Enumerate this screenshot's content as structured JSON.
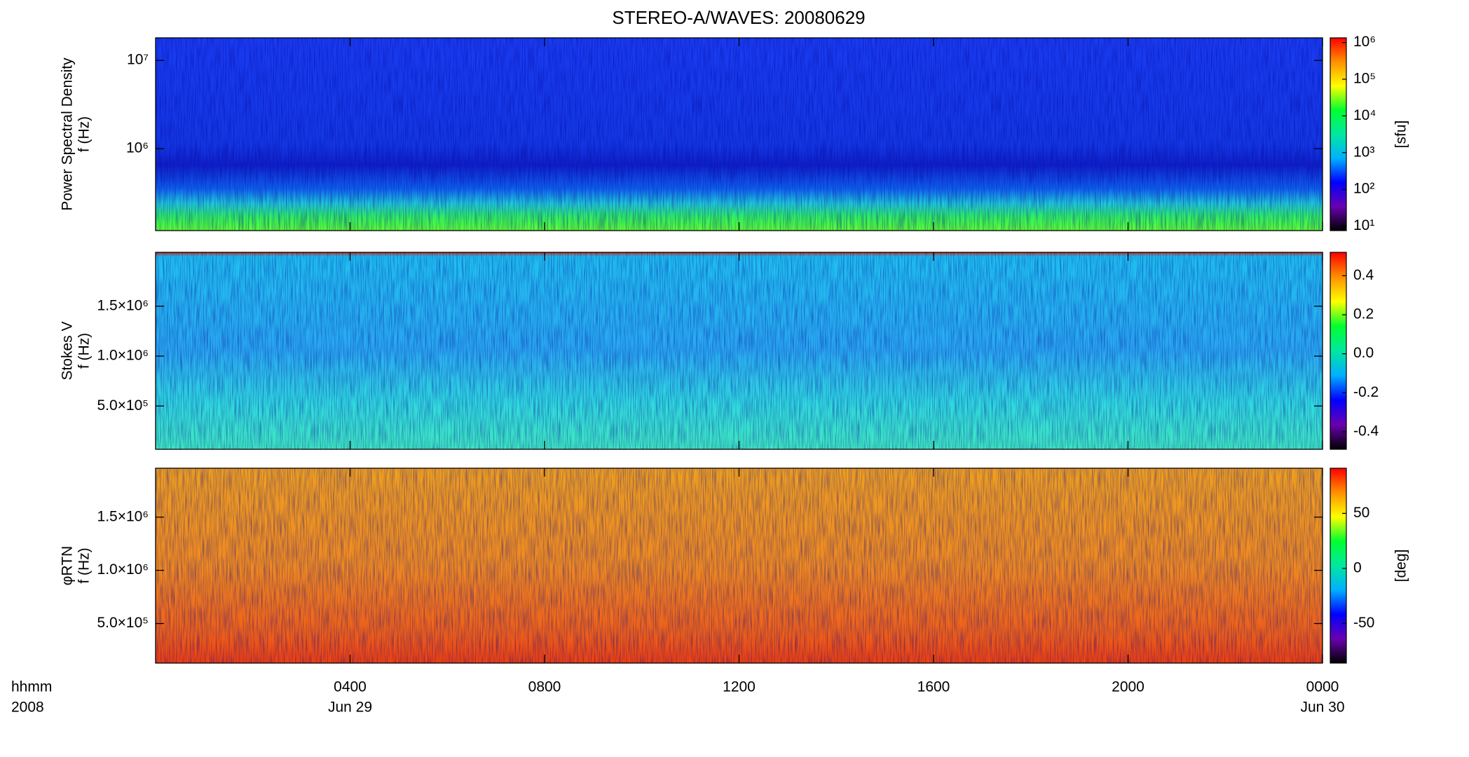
{
  "chart_data": [
    {
      "type": "spectrogram",
      "title": "STEREO-A/WAVES: 20080629",
      "ylabel": [
        "Power Spectral Density",
        "f (Hz)"
      ],
      "ylog": true,
      "ylim": [
        118000,
        18000000
      ],
      "yticks": [
        {
          "value": 1000000,
          "label": "10⁶"
        },
        {
          "value": 10000000,
          "label": "10⁷"
        }
      ],
      "xlim": [
        0,
        24
      ],
      "xticks": [
        4,
        8,
        12,
        16,
        20,
        24
      ],
      "colormap": [
        "#000000",
        "#6a00b0",
        "#0000ff",
        "#00b0ff",
        "#00e8a0",
        "#00ff30",
        "#ffff00",
        "#ff9000",
        "#ff0000"
      ],
      "colorbar": {
        "log": true,
        "lim": [
          7.5,
          1340000
        ],
        "label": "[sfu]",
        "ticks": [
          {
            "value": 10,
            "label": "10¹"
          },
          {
            "value": 100,
            "label": "10²"
          },
          {
            "value": 1000,
            "label": "10³"
          },
          {
            "value": 10000,
            "label": "10⁴"
          },
          {
            "value": 100000,
            "label": "10⁵"
          },
          {
            "value": 1000000,
            "label": "10⁶"
          }
        ]
      }
    },
    {
      "type": "spectrogram",
      "ylabel": [
        "Stokes V",
        "f (Hz)"
      ],
      "ylog": false,
      "ylim": [
        66000,
        2040000
      ],
      "yticks": [
        {
          "value": 500000,
          "label": "5.0×10⁵"
        },
        {
          "value": 1000000,
          "label": "1.0×10⁶"
        },
        {
          "value": 1500000,
          "label": "1.5×10⁶"
        }
      ],
      "xlim": [
        0,
        24
      ],
      "xticks": [
        4,
        8,
        12,
        16,
        20,
        24
      ],
      "colormap": [
        "#000000",
        "#6a00b0",
        "#0000ff",
        "#00b0ff",
        "#00e8a0",
        "#00ff30",
        "#ffff00",
        "#ff9000",
        "#ff0000"
      ],
      "colorbar": {
        "log": false,
        "lim": [
          -0.49,
          0.52
        ],
        "ticks": [
          -0.4,
          -0.2,
          {
            "value": 0,
            "label": "0.0"
          },
          0.2,
          0.4
        ]
      }
    },
    {
      "type": "spectrogram",
      "ylabel": [
        "φRTN",
        "f (Hz)"
      ],
      "ylog": false,
      "ylim": [
        128000,
        1960000
      ],
      "yticks": [
        {
          "value": 500000,
          "label": "5.0×10⁵"
        },
        {
          "value": 1000000,
          "label": "1.0×10⁶"
        },
        {
          "value": 1500000,
          "label": "1.5×10⁶"
        }
      ],
      "xlim": [
        0,
        24
      ],
      "xticks": [
        {
          "value": 4,
          "label": "0400"
        },
        {
          "value": 8,
          "label": "0800"
        },
        {
          "value": 12,
          "label": "1200"
        },
        {
          "value": 16,
          "label": "1600"
        },
        {
          "value": 20,
          "label": "2000"
        },
        {
          "value": 24,
          "label": "0000"
        }
      ],
      "x_dates": [
        {
          "value": 4,
          "label": "Jun 29"
        },
        {
          "value": 24,
          "label": "Jun 30"
        }
      ],
      "xlabel": [
        "hhmm",
        "2008"
      ],
      "colormap": [
        "#000000",
        "#6a00b0",
        "#0000ff",
        "#00b0ff",
        "#00e8a0",
        "#00ff30",
        "#ffff00",
        "#ff9000",
        "#ff0000"
      ],
      "colorbar": {
        "log": false,
        "lim": [
          -86,
          91
        ],
        "label": "[deg]",
        "ticks": [
          -50,
          0,
          50
        ]
      }
    }
  ]
}
